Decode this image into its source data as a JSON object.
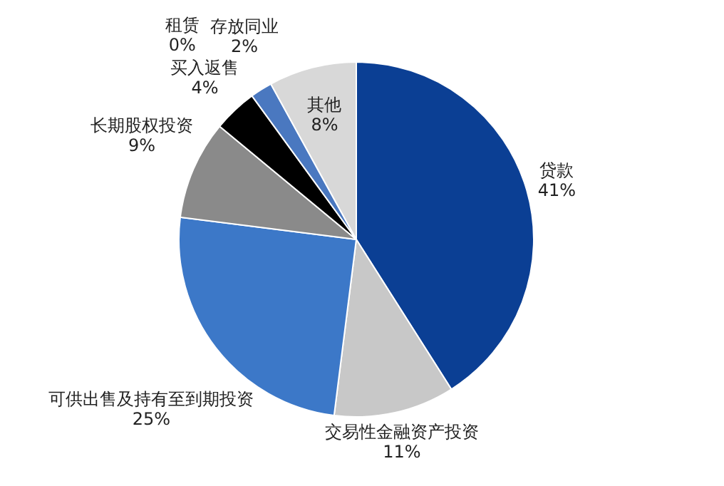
{
  "chart_data": {
    "type": "pie",
    "categories": [
      "贷款",
      "交易性金融资产投资",
      "可供出售及持有至到期投资",
      "长期股权投资",
      "买入返售",
      "租赁",
      "存放同业",
      "其他"
    ],
    "values": [
      41,
      11,
      25,
      9,
      4,
      0,
      2,
      8
    ],
    "value_labels": [
      "41%",
      "11%",
      "25%",
      "9%",
      "4%",
      "0%",
      "2%",
      "8%"
    ],
    "colors": [
      "#0b3f94",
      "#c8c8c8",
      "#3c78c8",
      "#8a8a8a",
      "#000000",
      "#1a1a1a",
      "#4a78c0",
      "#d8d8d8"
    ],
    "legend": false
  }
}
